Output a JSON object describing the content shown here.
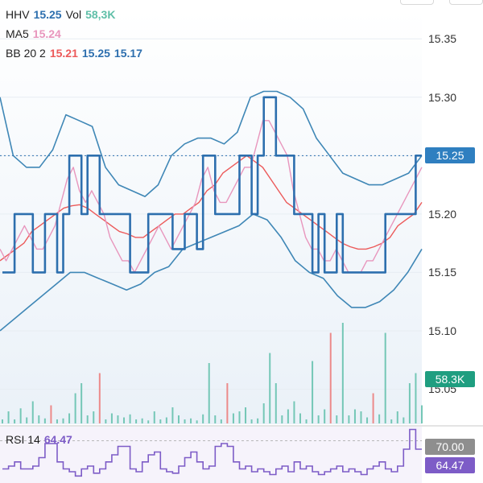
{
  "legend": {
    "hhv_label": "HHV",
    "hhv_value": "15.25",
    "vol_label": "Vol",
    "vol_value": "58,3K",
    "ma_label": "MA5",
    "ma_value": "15.24",
    "bb_label": "BB 20 2",
    "bb_mid": "15.21",
    "bb_upper": "15.25",
    "bb_lower": "15.17"
  },
  "rsi": {
    "label": "RSI 14",
    "value": "64.47",
    "level_label": "70.00",
    "value_badge": "64.47"
  },
  "badges": {
    "price": "15.25",
    "volume": "58.3K"
  },
  "colors": {
    "price": "#2d6fae",
    "ma": "#e896bd",
    "bb_mid": "#ec5a5a",
    "bb_band": "#3f87b6",
    "vol_up": "#74c7b6",
    "vol_down": "#ec8a8a",
    "rsi": "#7d5cc7",
    "price_badge": "#2f7fc0",
    "vol_badge": "#1f9e80",
    "rsi_level_badge": "#8e8e8e"
  },
  "chart_data": {
    "type": "line",
    "y_ticks": [
      "15.35",
      "15.30",
      "15.25",
      "15.20",
      "15.15",
      "15.10",
      "15.05"
    ],
    "ylim": [
      15.02,
      15.375
    ],
    "current_price": 15.25,
    "n_points": 70,
    "series": [
      {
        "name": "HHV",
        "values": [
          15.15,
          15.15,
          15.2,
          15.2,
          15.2,
          15.15,
          15.15,
          15.2,
          15.2,
          15.15,
          15.2,
          15.25,
          15.25,
          15.2,
          15.25,
          15.25,
          15.2,
          15.2,
          15.2,
          15.2,
          15.2,
          15.15,
          15.15,
          15.15,
          15.2,
          15.2,
          15.2,
          15.2,
          15.17,
          15.17,
          15.2,
          15.2,
          15.17,
          15.25,
          15.25,
          15.2,
          15.2,
          15.2,
          15.2,
          15.25,
          15.25,
          15.2,
          15.25,
          15.3,
          15.3,
          15.25,
          15.25,
          15.25,
          15.2,
          15.2,
          15.2,
          15.15,
          15.2,
          15.15,
          15.15,
          15.2,
          15.15,
          15.15,
          15.15,
          15.15,
          15.15,
          15.15,
          15.15,
          15.2,
          15.2,
          15.2,
          15.2,
          15.2,
          15.25,
          15.25
        ]
      },
      {
        "name": "MA5",
        "values": [
          15.17,
          15.16,
          15.17,
          15.18,
          15.19,
          15.18,
          15.17,
          15.17,
          15.18,
          15.19,
          15.21,
          15.23,
          15.24,
          15.22,
          15.21,
          15.22,
          15.21,
          15.2,
          15.18,
          15.17,
          15.16,
          15.16,
          15.15,
          15.16,
          15.17,
          15.18,
          15.19,
          15.18,
          15.17,
          15.18,
          15.19,
          15.2,
          15.21,
          15.23,
          15.24,
          15.22,
          15.21,
          15.21,
          15.22,
          15.23,
          15.24,
          15.24,
          15.26,
          15.28,
          15.28,
          15.27,
          15.26,
          15.25,
          15.22,
          15.2,
          15.18,
          15.17,
          15.17,
          15.16,
          15.16,
          15.17,
          15.16,
          15.15,
          15.15,
          15.15,
          15.16,
          15.16,
          15.17,
          15.18,
          15.19,
          15.2,
          15.21,
          15.22,
          15.23,
          15.24
        ]
      },
      {
        "name": "BB 20 2",
        "values": [
          15.16,
          15.165,
          15.17,
          15.175,
          15.185,
          15.19,
          15.195,
          15.2,
          15.205,
          15.207,
          15.208,
          15.205,
          15.2,
          15.195,
          15.19,
          15.185,
          15.183,
          15.18,
          15.18,
          15.185,
          15.19,
          15.195,
          15.2,
          15.2,
          15.205,
          15.21,
          15.22,
          15.225,
          15.235,
          15.24,
          15.245,
          15.25,
          15.245,
          15.24,
          15.23,
          15.22,
          15.21,
          15.205,
          15.2,
          15.195,
          15.19,
          15.185,
          15.18,
          15.175,
          15.172,
          15.17,
          15.17,
          15.172,
          15.175,
          15.18,
          15.19,
          15.195,
          15.2,
          15.21
        ]
      },
      {
        "name": "BB upper",
        "values": [
          15.3,
          15.25,
          15.24,
          15.24,
          15.255,
          15.285,
          15.28,
          15.275,
          15.24,
          15.225,
          15.22,
          15.215,
          15.225,
          15.25,
          15.26,
          15.265,
          15.265,
          15.26,
          15.27,
          15.3,
          15.305,
          15.305,
          15.3,
          15.29,
          15.265,
          15.25,
          15.235,
          15.23,
          15.225,
          15.225,
          15.23,
          15.235,
          15.25
        ]
      },
      {
        "name": "BB lower",
        "values": [
          15.1,
          15.11,
          15.12,
          15.13,
          15.14,
          15.15,
          15.15,
          15.145,
          15.14,
          15.135,
          15.14,
          15.15,
          15.155,
          15.17,
          15.175,
          15.18,
          15.185,
          15.19,
          15.2,
          15.195,
          15.18,
          15.16,
          15.15,
          15.145,
          15.13,
          15.12,
          15.12,
          15.125,
          15.135,
          15.15,
          15.17
        ]
      }
    ],
    "volume": {
      "values": [
        4,
        12,
        4,
        15,
        6,
        22,
        8,
        5,
        18,
        4,
        5,
        10,
        30,
        40,
        8,
        12,
        50,
        4,
        10,
        8,
        6,
        9,
        4,
        5,
        3,
        12,
        4,
        6,
        16,
        8,
        4,
        5,
        3,
        9,
        60,
        8,
        4,
        40,
        10,
        12,
        16,
        4,
        5,
        20,
        70,
        40,
        8,
        14,
        22,
        10,
        4,
        62,
        8,
        14,
        90,
        8,
        100,
        8,
        14,
        12,
        6,
        30,
        9,
        90,
        4,
        12,
        6,
        40,
        50,
        18
      ],
      "down_indices": [
        8,
        16,
        37,
        54,
        61
      ],
      "max": 100
    },
    "rsi": {
      "values": [
        50,
        52,
        55,
        50,
        50,
        52,
        58,
        68,
        68,
        55,
        50,
        48,
        45,
        50,
        52,
        47,
        50,
        55,
        60,
        66,
        66,
        50,
        48,
        55,
        60,
        62,
        50,
        48,
        47,
        52,
        58,
        62,
        55,
        50,
        52,
        66,
        68,
        66,
        55,
        50,
        52,
        48,
        50,
        48,
        46,
        50,
        52,
        48,
        55,
        50,
        52,
        48,
        46,
        48,
        50,
        52,
        48,
        50,
        48,
        46,
        50,
        52,
        55,
        50,
        48,
        52,
        64,
        78,
        64,
        64
      ],
      "ylim": [
        40,
        80
      ],
      "level": 70
    }
  }
}
